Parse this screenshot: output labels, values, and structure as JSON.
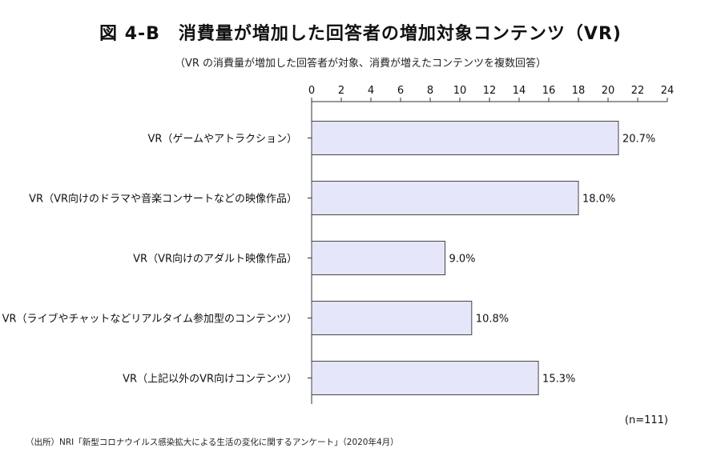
{
  "header": {
    "title": "図 4-B　消費量が増加した回答者の増加対象コンテンツ（VR)",
    "subtitle": "（VR の消費量が増加した回答者が対象、消費が増えたコンテンツを複数回答）"
  },
  "chart_data": {
    "type": "bar",
    "orientation": "horizontal",
    "categories": [
      "VR（ゲームやアトラクション）",
      "VR（VR向けのドラマや音楽コンサートなどの映像作品）",
      "VR（VR向けのアダルト映像作品）",
      "VR（ライブやチャットなどリアルタイム参加型のコンテンツ）",
      "VR（上記以外のVR向けコンテンツ）"
    ],
    "values": [
      20.7,
      18.0,
      9.0,
      10.8,
      15.3
    ],
    "value_labels": [
      "20.7%",
      "18.0%",
      "9.0%",
      "10.8%",
      "15.3%"
    ],
    "xlim": [
      0,
      24
    ],
    "xticks": [
      0,
      2,
      4,
      6,
      8,
      10,
      12,
      14,
      16,
      18,
      20,
      22,
      24
    ],
    "tick_labels": [
      "0",
      "2",
      "4",
      "6",
      "8",
      "10",
      "12",
      "14",
      "16",
      "18",
      "20",
      "22",
      "24"
    ],
    "axis_position": "top",
    "grid": false,
    "bar_fill": "#e6e6fa",
    "bar_stroke": "#444444"
  },
  "footer": {
    "note": "(n=111)",
    "source": "（出所）NRI「新型コロナウイルス感染拡大による生活の変化に関するアンケート」（2020年4月）"
  }
}
